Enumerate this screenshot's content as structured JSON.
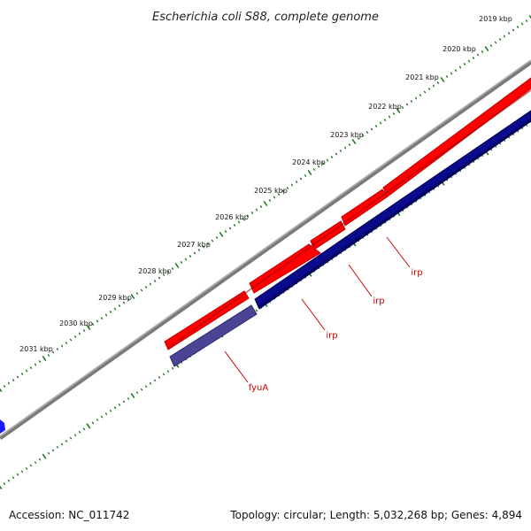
{
  "title": "Escherichia coli S88, complete genome",
  "footer": {
    "accession": "Accession: NC_011742",
    "summary": "Topology: circular; Length: 5,032,268 bp; Genes: 4,894"
  },
  "ticks": [
    {
      "label": "2019 kbp"
    },
    {
      "label": "2020 kbp"
    },
    {
      "label": "2021 kbp"
    },
    {
      "label": "2022 kbp"
    },
    {
      "label": "2023 kbp"
    },
    {
      "label": "2024 kbp"
    },
    {
      "label": "2025 kbp"
    },
    {
      "label": "2026 kbp"
    },
    {
      "label": "2027 kbp"
    },
    {
      "label": "2028 kbp"
    },
    {
      "label": "2029 kbp"
    },
    {
      "label": "2030 kbp"
    },
    {
      "label": "2031 kbp"
    }
  ],
  "genes": [
    {
      "label": "irp"
    },
    {
      "label": "irp"
    },
    {
      "label": "irp"
    },
    {
      "label": "fyuA"
    }
  ],
  "colors": {
    "backbone": "#8a8a8a",
    "forward": "#ff0000",
    "reverse": "#0a0a8c",
    "fyuA": "#4b4393",
    "ticks": "#1e7a1e",
    "gene_label": "#cc0000",
    "leftEdge": "#1a1aff"
  }
}
